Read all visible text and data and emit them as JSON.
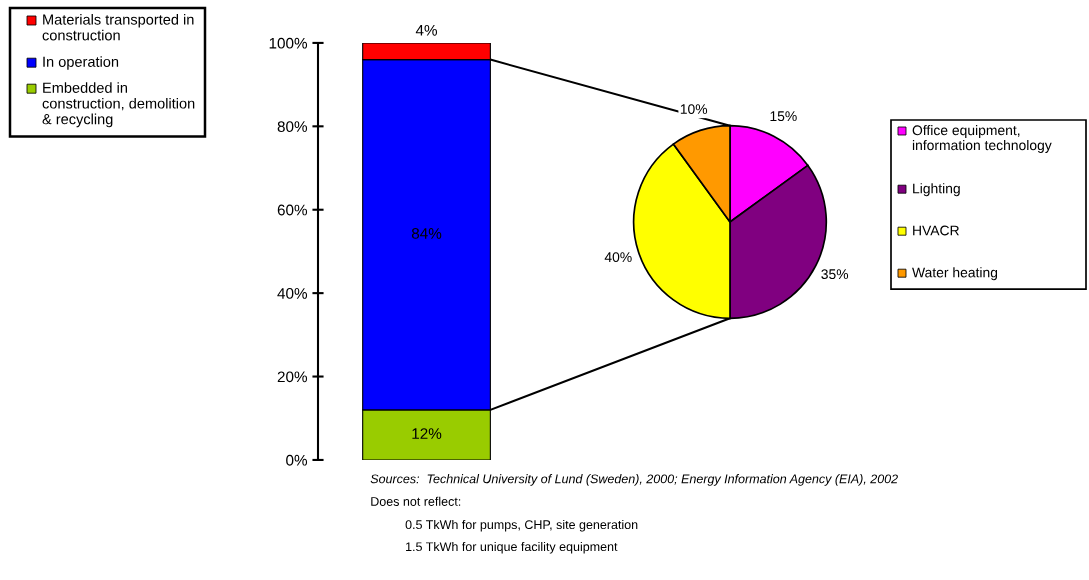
{
  "chart_data": [
    {
      "type": "bar",
      "stacked": true,
      "categories": [
        null
      ],
      "ylim": [
        0,
        100
      ],
      "yticks": [
        {
          "value": 0,
          "label": "0%"
        },
        {
          "value": 20,
          "label": "20%"
        },
        {
          "value": 40,
          "label": "40%"
        },
        {
          "value": 60,
          "label": "60%"
        },
        {
          "value": 80,
          "label": "80%"
        },
        {
          "value": 100,
          "label": "100%"
        }
      ],
      "series": [
        {
          "name": "Embedded in construction, demolition & recycling",
          "color": "#99cc00",
          "values": [
            12
          ],
          "value_labels": [
            "12%"
          ]
        },
        {
          "name": "In operation",
          "color": "#0000ff",
          "values": [
            84
          ],
          "value_labels": [
            "84%"
          ]
        },
        {
          "name": "Materials transported in construction",
          "color": "#ff0000",
          "values": [
            4
          ],
          "value_labels": [
            "4%"
          ]
        }
      ],
      "legend": "left",
      "grid": false,
      "annotations": [
        "Sources:  Technical University of Lund (Sweden), 2000; Energy Information Agency (EIA), 2002",
        "Does not reflect:",
        "0.5 TkWh for pumps, CHP, site generation",
        "1.5 TkWh for unique facility equipment"
      ]
    },
    {
      "type": "pie",
      "categories": [
        "Office equipment, information technology",
        "Lighting",
        "HVACR",
        "Water heating"
      ],
      "values": [
        15,
        35,
        40,
        10
      ],
      "colors": [
        "#ff00ff",
        "#800080",
        "#ffff00",
        "#ff9900"
      ],
      "value_labels": [
        "15%",
        "35%",
        "40%",
        "10%"
      ],
      "legend": "right"
    }
  ]
}
